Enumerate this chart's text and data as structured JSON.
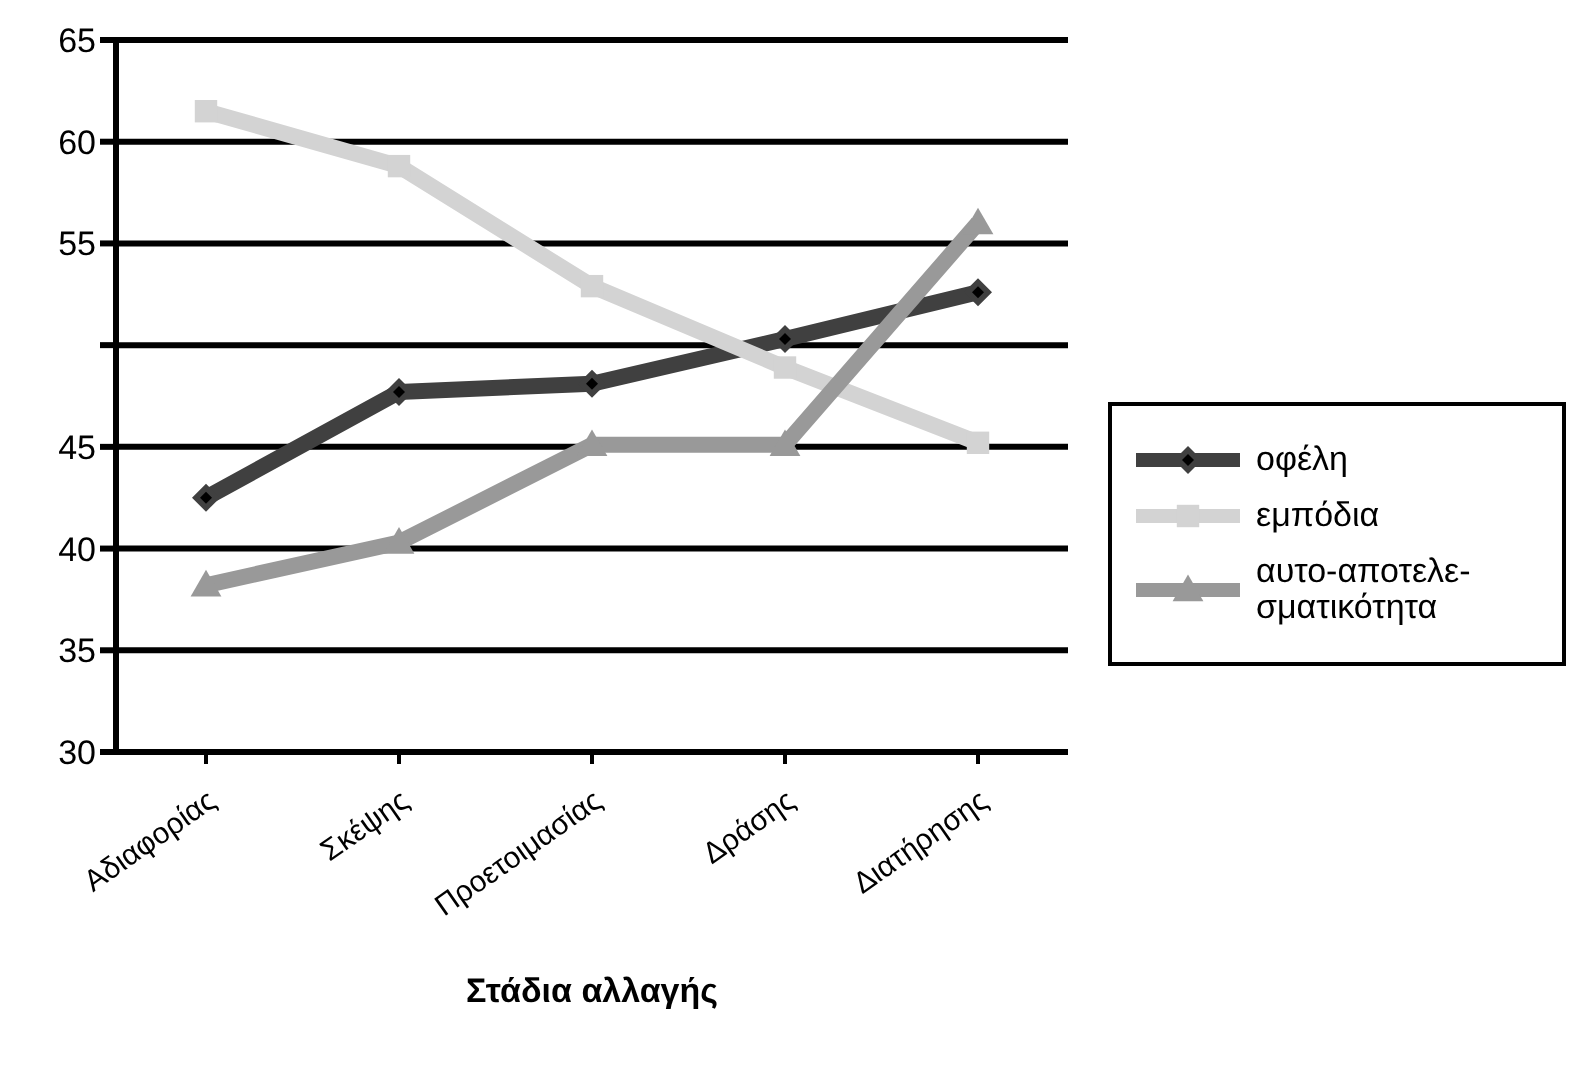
{
  "chart_data": {
    "type": "line",
    "xlabel": "Στάδια αλλαγής",
    "categories": [
      "Αδιαφορίας",
      "Σκέψης",
      "Προετοιμασίας",
      "Δράσης",
      "Διατήρησης"
    ],
    "series": [
      {
        "name": "οφέλη",
        "color": "#404040",
        "marker": "diamond",
        "values": [
          42.5,
          47.7,
          48.1,
          50.3,
          52.6
        ]
      },
      {
        "name": "εμπόδια",
        "color": "#d3d3d3",
        "marker": "square",
        "values": [
          61.5,
          58.8,
          52.9,
          48.9,
          45.2
        ]
      },
      {
        "name": "αυτο-αποτελε-σματικότητα",
        "color": "#999999",
        "marker": "triangle",
        "values": [
          38.2,
          40.3,
          45.1,
          45.1,
          56.0
        ]
      }
    ],
    "ylim": [
      30,
      65
    ],
    "yticks": [
      30,
      35,
      40,
      45,
      {
        "value": 50,
        "label": null
      },
      55,
      60,
      65
    ],
    "grid": "y",
    "legend": "right",
    "line_style": "solid"
  }
}
